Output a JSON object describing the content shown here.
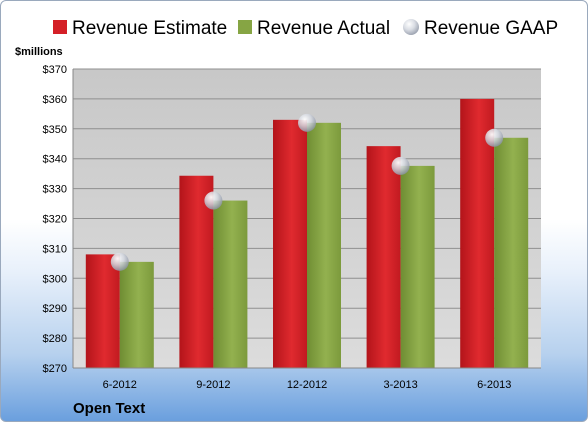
{
  "chart_data": {
    "type": "bar",
    "unit_label": "$millions",
    "footer_label": "Open Text",
    "categories": [
      "6-2012",
      "9-2012",
      "12-2012",
      "3-2013",
      "6-2013"
    ],
    "series": [
      {
        "name": "Revenue Estimate",
        "kind": "bar",
        "color": "#d42027",
        "values": [
          308,
          334.3,
          353,
          344.2,
          360
        ]
      },
      {
        "name": "Revenue Actual",
        "kind": "bar",
        "color": "#86a544",
        "values": [
          305.5,
          326,
          352,
          337.6,
          347
        ]
      },
      {
        "name": "Revenue GAAP",
        "kind": "point",
        "color": "#c7ccd6",
        "values": [
          305.5,
          326,
          352,
          337.6,
          347
        ]
      }
    ],
    "ylim": [
      270,
      370
    ],
    "ytick_step": 10,
    "ytick_labels": [
      "$270",
      "$280",
      "$290",
      "$300",
      "$310",
      "$320",
      "$330",
      "$340",
      "$350",
      "$360",
      "$370"
    ],
    "grid": true,
    "legend_position": "top"
  }
}
